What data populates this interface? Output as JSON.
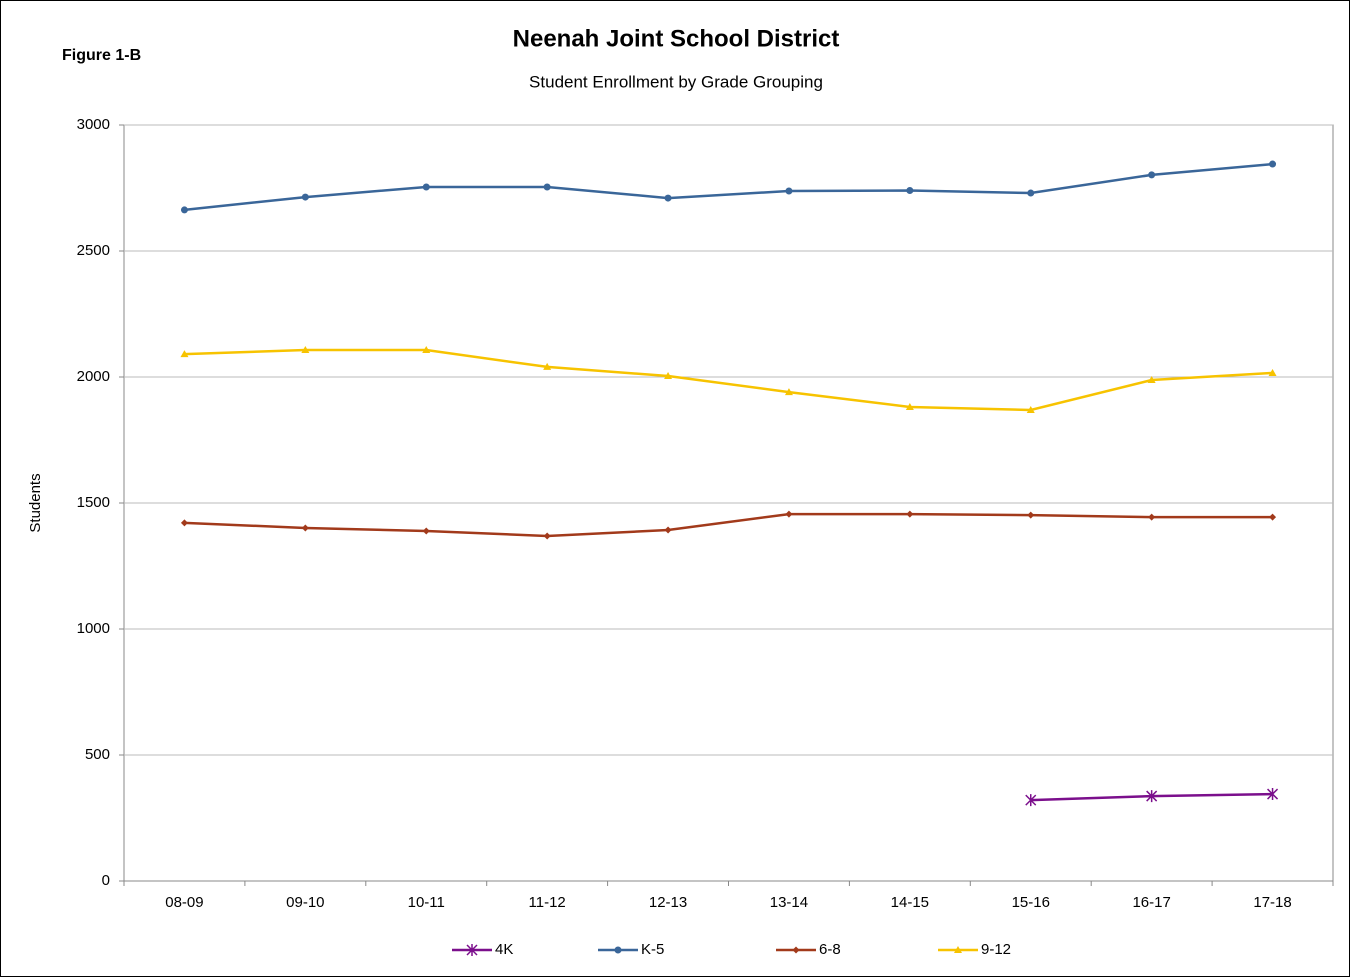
{
  "chart_data": {
    "type": "line",
    "figure_label": "Figure 1-B",
    "title": "Neenah Joint  School District",
    "subtitle": "Student Enrollment by Grade Grouping",
    "y_label": "Students",
    "categories": [
      "08-09",
      "09-10",
      "10-11",
      "11-12",
      "12-13",
      "13-14",
      "14-15",
      "15-16",
      "16-17",
      "17-18"
    ],
    "series": [
      {
        "name": "4K",
        "color": "#7b0f8c",
        "marker": "asterisk",
        "values": [
          null,
          null,
          null,
          null,
          null,
          null,
          null,
          321,
          337,
          345
        ]
      },
      {
        "name": "K-5",
        "color": "#3a6699",
        "marker": "circle",
        "values": [
          2663,
          2714,
          2754,
          2754,
          2710,
          2738,
          2740,
          2730,
          2802,
          2845
        ]
      },
      {
        "name": "6-8",
        "color": "#a23a1b",
        "marker": "diamond",
        "values": [
          1421,
          1401,
          1389,
          1369,
          1393,
          1456,
          1456,
          1452,
          1444,
          1444
        ]
      },
      {
        "name": "9-12",
        "color": "#f7c300",
        "marker": "triangle",
        "values": [
          2091,
          2107,
          2107,
          2040,
          2004,
          1940,
          1881,
          1869,
          1988,
          2016
        ]
      }
    ],
    "ylim": [
      0,
      3000
    ],
    "yticks": [
      0,
      500,
      1000,
      1500,
      2000,
      2500,
      3000
    ],
    "grid": true,
    "legend": "bottom"
  }
}
